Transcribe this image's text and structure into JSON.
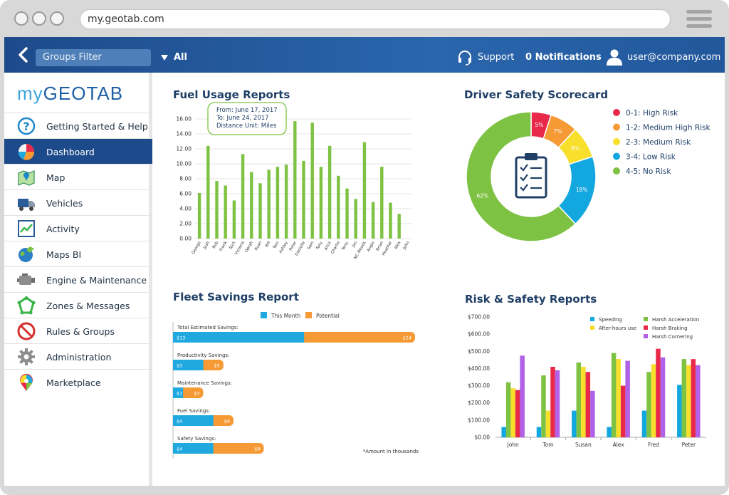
{
  "browser": {
    "url": "my.geotab.com"
  },
  "topnav": {
    "groups_filter": "Groups Filter",
    "group_value": "All",
    "support": "Support",
    "notifications": "0 Notifications",
    "user": "user@company.com"
  },
  "sidebar": {
    "logo_my": "my",
    "logo_brand": "GEOTAB",
    "items": [
      {
        "label": "Getting Started & Help",
        "icon": "help-icon"
      },
      {
        "label": "Dashboard",
        "icon": "pie-chart-icon"
      },
      {
        "label": "Map",
        "icon": "map-icon"
      },
      {
        "label": "Vehicles",
        "icon": "truck-icon"
      },
      {
        "label": "Activity",
        "icon": "activity-icon"
      },
      {
        "label": "Maps BI",
        "icon": "globe-icon"
      },
      {
        "label": "Engine & Maintenance",
        "icon": "engine-icon"
      },
      {
        "label": "Zones & Messages",
        "icon": "zones-icon"
      },
      {
        "label": "Rules & Groups",
        "icon": "prohibited-icon"
      },
      {
        "label": "Administration",
        "icon": "gear-icon"
      },
      {
        "label": "Marketplace",
        "icon": "marketplace-pin-icon"
      }
    ],
    "active_index": 1
  },
  "fuel": {
    "title": "Fuel Usage Reports",
    "tooltip": [
      "From: June 17, 2017",
      "To: June 24, 2017",
      "Distance Unit: Miles"
    ],
    "colors": {
      "bar": "#7dc242"
    },
    "chart_data": {
      "type": "bar",
      "ylim": [
        0,
        16
      ],
      "yticks": [
        "0.00",
        "2.00",
        "4.00",
        "6.00",
        "8.00",
        "10.00",
        "12.00",
        "14.00",
        "16.00"
      ],
      "categories": [
        "George",
        "Josh",
        "Bob",
        "Frank",
        "Rich",
        "Victoria",
        "Oprah",
        "Ryan",
        "Bill",
        "Tom",
        "Ashley",
        "Peter",
        "Danielle",
        "Sam",
        "Tony",
        "Alice",
        "Charlie",
        "Terry",
        "Jim",
        "NC Woods",
        "Angie",
        "Brian",
        "Heather",
        "Alex",
        "John"
      ],
      "values": [
        6.1,
        12.4,
        7.7,
        7.1,
        5.1,
        11.3,
        8.9,
        7.4,
        9.2,
        9.6,
        9.9,
        15.7,
        10.4,
        15.5,
        9.6,
        12.4,
        8.4,
        6.7,
        5.3,
        12.9,
        4.9,
        9.6,
        4.8,
        3.3,
        0
      ]
    }
  },
  "safety": {
    "title": "Driver Safety Scorecard",
    "chart_data": {
      "type": "pie",
      "slices": [
        {
          "label": "0-1: High Risk",
          "value": 5,
          "text": "5%",
          "color": "#e8294a"
        },
        {
          "label": "1-2: Medium High Risk",
          "value": 7,
          "text": "7%",
          "color": "#f59a35"
        },
        {
          "label": "2-3: Medium Risk",
          "value": 8,
          "text": "8%",
          "color": "#f7df2b"
        },
        {
          "label": "3-4: Low Risk",
          "value": 18,
          "text": "18%",
          "color": "#13a7e0"
        },
        {
          "label": "4-5: No Risk",
          "value": 62,
          "text": "62%",
          "color": "#7dc242"
        }
      ]
    }
  },
  "fleet": {
    "title": "Fleet Savings Report",
    "legend": [
      {
        "name": "This Month",
        "color": "#20a9df"
      },
      {
        "name": "Potential",
        "color": "#f59a35"
      }
    ],
    "footnote": "*Amount in thousands",
    "chart_data": {
      "type": "bar",
      "orientation": "horizontal",
      "categories": [
        "Total Estimated Savings:",
        "Productivity Savings:",
        "Maintenance Savings:",
        "Fuel Savings:",
        "Safety Savings:"
      ],
      "series": [
        {
          "name": "This Month",
          "values": [
            13,
            3,
            1,
            4,
            4
          ],
          "labels": [
            "$13",
            "$3",
            "$1",
            "$4",
            "$4"
          ]
        },
        {
          "name": "Potential",
          "values": [
            24,
            5,
            3,
            6,
            9
          ],
          "labels": [
            "$24",
            "$5",
            "$3",
            "$6",
            "$9"
          ]
        }
      ],
      "xlim": [
        0,
        24
      ]
    }
  },
  "risk": {
    "title": "Risk & Safety Reports",
    "chart_data": {
      "type": "bar",
      "ylim": [
        0,
        700
      ],
      "yticks": [
        "$0.00",
        "$100.00",
        "$200.00",
        "$300.00",
        "$400.00",
        "$500.00",
        "$600.00",
        "$700.00"
      ],
      "categories": [
        "John",
        "Tom",
        "Susan",
        "Alex",
        "Fred",
        "Peter"
      ],
      "series": [
        {
          "name": "Speeding",
          "color": "#13a7e0",
          "values": [
            60,
            60,
            155,
            60,
            155,
            305
          ]
        },
        {
          "name": "Harsh Acceleration",
          "color": "#7dc242",
          "values": [
            320,
            360,
            435,
            490,
            380,
            455
          ]
        },
        {
          "name": "After-hours use",
          "color": "#f7df2b",
          "values": [
            285,
            155,
            410,
            455,
            425,
            420
          ]
        },
        {
          "name": "Harsh Braking",
          "color": "#e8294a",
          "values": [
            275,
            410,
            380,
            300,
            515,
            455
          ]
        },
        {
          "name": "Harsh Cornering",
          "color": "#b160e8",
          "values": [
            475,
            390,
            270,
            445,
            465,
            420
          ]
        }
      ]
    }
  }
}
